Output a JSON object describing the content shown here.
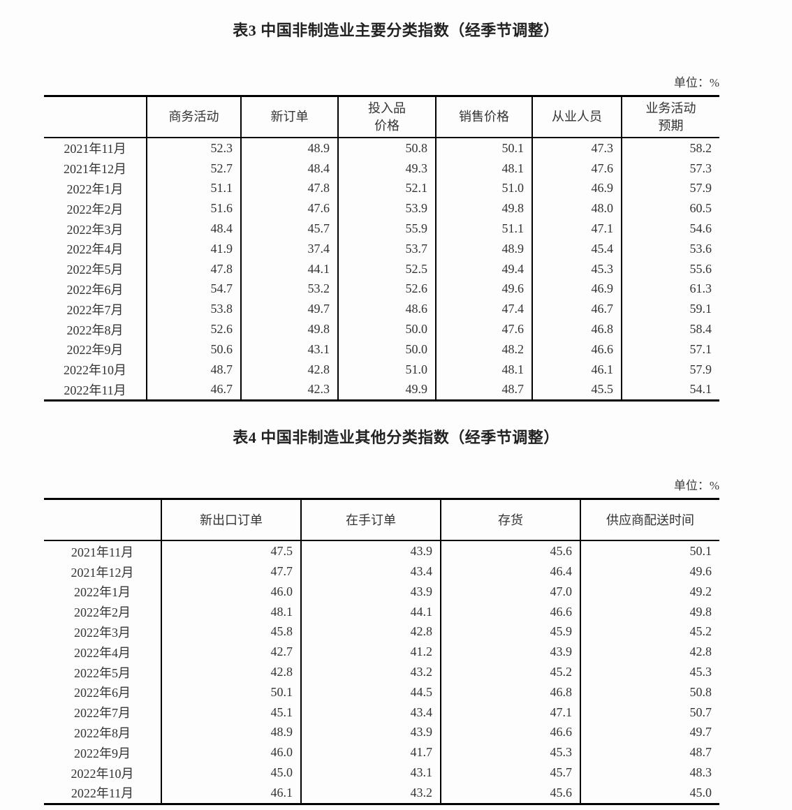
{
  "colors": {
    "text": "#333333",
    "rule": "#000000",
    "background": "#fdfdfd"
  },
  "tables": [
    {
      "title": "表3 中国非制造业主要分类指数（经季节调整）",
      "unit": "单位：%",
      "columns": [
        "商务活动",
        "新订单",
        "投入品\n价格",
        "销售价格",
        "从业人员",
        "业务活动\n预期"
      ],
      "rows": [
        {
          "label": "2021年11月",
          "values": [
            "52.3",
            "48.9",
            "50.8",
            "50.1",
            "47.3",
            "58.2"
          ]
        },
        {
          "label": "2021年12月",
          "values": [
            "52.7",
            "48.4",
            "49.3",
            "48.1",
            "47.6",
            "57.3"
          ]
        },
        {
          "label": "2022年1月",
          "values": [
            "51.1",
            "47.8",
            "52.1",
            "51.0",
            "46.9",
            "57.9"
          ]
        },
        {
          "label": "2022年2月",
          "values": [
            "51.6",
            "47.6",
            "53.9",
            "49.8",
            "48.0",
            "60.5"
          ]
        },
        {
          "label": "2022年3月",
          "values": [
            "48.4",
            "45.7",
            "55.9",
            "51.1",
            "47.1",
            "54.6"
          ]
        },
        {
          "label": "2022年4月",
          "values": [
            "41.9",
            "37.4",
            "53.7",
            "48.9",
            "45.4",
            "53.6"
          ]
        },
        {
          "label": "2022年5月",
          "values": [
            "47.8",
            "44.1",
            "52.5",
            "49.4",
            "45.3",
            "55.6"
          ]
        },
        {
          "label": "2022年6月",
          "values": [
            "54.7",
            "53.2",
            "52.6",
            "49.6",
            "46.9",
            "61.3"
          ]
        },
        {
          "label": "2022年7月",
          "values": [
            "53.8",
            "49.7",
            "48.6",
            "47.4",
            "46.7",
            "59.1"
          ]
        },
        {
          "label": "2022年8月",
          "values": [
            "52.6",
            "49.8",
            "50.0",
            "47.6",
            "46.8",
            "58.4"
          ]
        },
        {
          "label": "2022年9月",
          "values": [
            "50.6",
            "43.1",
            "50.0",
            "48.2",
            "46.6",
            "57.1"
          ]
        },
        {
          "label": "2022年10月",
          "values": [
            "48.7",
            "42.8",
            "51.0",
            "48.1",
            "46.1",
            "57.9"
          ]
        },
        {
          "label": "2022年11月",
          "values": [
            "46.7",
            "42.3",
            "49.9",
            "48.7",
            "45.5",
            "54.1"
          ]
        }
      ]
    },
    {
      "title": "表4 中国非制造业其他分类指数（经季节调整）",
      "unit": "单位：%",
      "columns": [
        "新出口订单",
        "在手订单",
        "存货",
        "供应商配送时间"
      ],
      "rows": [
        {
          "label": "2021年11月",
          "values": [
            "47.5",
            "43.9",
            "45.6",
            "50.1"
          ]
        },
        {
          "label": "2021年12月",
          "values": [
            "47.7",
            "43.4",
            "46.4",
            "49.6"
          ]
        },
        {
          "label": "2022年1月",
          "values": [
            "46.0",
            "43.9",
            "47.0",
            "49.2"
          ]
        },
        {
          "label": "2022年2月",
          "values": [
            "48.1",
            "44.1",
            "46.6",
            "49.8"
          ]
        },
        {
          "label": "2022年3月",
          "values": [
            "45.8",
            "42.8",
            "45.9",
            "45.2"
          ]
        },
        {
          "label": "2022年4月",
          "values": [
            "42.7",
            "41.2",
            "43.9",
            "42.8"
          ]
        },
        {
          "label": "2022年5月",
          "values": [
            "42.8",
            "43.2",
            "45.2",
            "45.3"
          ]
        },
        {
          "label": "2022年6月",
          "values": [
            "50.1",
            "44.5",
            "46.8",
            "50.8"
          ]
        },
        {
          "label": "2022年7月",
          "values": [
            "45.1",
            "43.4",
            "47.1",
            "50.7"
          ]
        },
        {
          "label": "2022年8月",
          "values": [
            "48.9",
            "43.9",
            "46.6",
            "49.7"
          ]
        },
        {
          "label": "2022年9月",
          "values": [
            "46.0",
            "41.7",
            "45.3",
            "48.7"
          ]
        },
        {
          "label": "2022年10月",
          "values": [
            "45.0",
            "43.1",
            "45.7",
            "48.3"
          ]
        },
        {
          "label": "2022年11月",
          "values": [
            "46.1",
            "43.2",
            "45.6",
            "45.0"
          ]
        }
      ]
    }
  ]
}
